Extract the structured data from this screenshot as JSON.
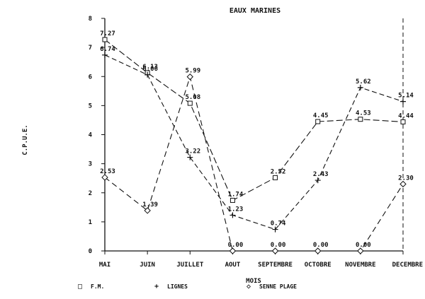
{
  "chart_data": {
    "type": "line",
    "title": "EAUX MARINES",
    "xlabel": "MOIS",
    "ylabel": "C.P.U.E.",
    "categories": [
      "MAI",
      "JUIN",
      "JUILLET",
      "AOUT",
      "SEPTEMBRE",
      "OCTOBRE",
      "NOVEMBRE",
      "DECEMBRE"
    ],
    "ylim": [
      0,
      8
    ],
    "yticks": [
      "0",
      "1",
      "2",
      "3",
      "4",
      "5",
      "6",
      "7",
      "8"
    ],
    "grid": false,
    "legend_position": "bottom",
    "series": [
      {
        "name": "F.M.",
        "marker": "square",
        "values": [
          7.27,
          6.13,
          5.08,
          1.74,
          2.52,
          4.45,
          4.53,
          4.44
        ],
        "labels": [
          "7.27",
          "6.13",
          "5.08",
          "1.74",
          "2.52",
          "4.45",
          "4.53",
          "4.44"
        ]
      },
      {
        "name": "LIGNES",
        "marker": "plus",
        "values": [
          6.74,
          6.06,
          3.22,
          1.23,
          0.74,
          2.43,
          5.62,
          5.14
        ],
        "labels": [
          "6.74",
          "6.06",
          "3.22",
          "1.23",
          "0.74",
          "2.43",
          "5.62",
          "5.14"
        ]
      },
      {
        "name": "SENNE PLAGE",
        "marker": "diamond",
        "values": [
          2.53,
          1.39,
          5.99,
          0.0,
          0.0,
          0.0,
          0.0,
          2.3
        ],
        "labels": [
          "2.53",
          "1.39",
          "5.99",
          "0.00",
          "0.00",
          "0.00",
          "0.00",
          "2.30"
        ]
      }
    ]
  },
  "legend": {
    "items": [
      {
        "symbol": "□",
        "label": "F.M."
      },
      {
        "symbol": "+",
        "label": "LIGNES"
      },
      {
        "symbol": "◇",
        "label": "SENNE PLAGE"
      }
    ]
  }
}
